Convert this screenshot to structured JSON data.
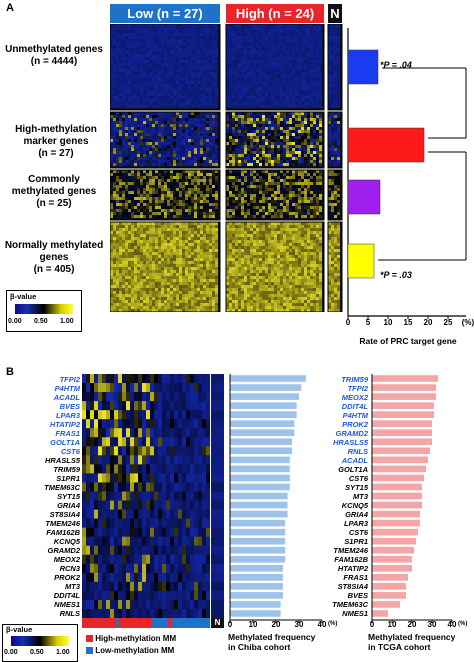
{
  "panelA": {
    "label": "A",
    "header_low": "Low (n = 27)",
    "header_high": "High (n = 24)",
    "header_n": "N",
    "groups": [
      {
        "name": "Unmethylated genes",
        "count": "(n = 4444)"
      },
      {
        "name": "High-methylation marker genes",
        "count": "(n = 27)"
      },
      {
        "name": "Commonly methylated genes",
        "count": "(n = 25)"
      },
      {
        "name": "Normally methylated genes",
        "count": "(n = 405)"
      }
    ],
    "legend_title": "β-value",
    "legend_ticks": [
      "0.00",
      "0.50",
      "1.00"
    ],
    "pvalue_top": "*P = .04",
    "pvalue_bottom": "*P = .03",
    "xlabel": "Rate of PRC target gene",
    "colors": {
      "low_header": "#1e73c8",
      "high_header": "#e8262a",
      "heat_blue": "#1a2db0",
      "heat_yellow": "#f0e640"
    }
  },
  "panelB": {
    "label": "B",
    "header_n": "N",
    "legend_title": "β-value",
    "legend_ticks": [
      "0.00",
      "0.50",
      "1.00"
    ],
    "legend_high": "High-methylation MM",
    "legend_low": "Low-methylation MM",
    "chiba_xlabel_1": "Methylated frequency",
    "chiba_xlabel_2": "in Chiba cohort",
    "tcga_xlabel_1": "Methylated frequency",
    "tcga_xlabel_2": "in TCGA cohort",
    "unit": "(%)"
  },
  "chart_data": [
    {
      "type": "bar",
      "orientation": "horizontal",
      "categories": [
        "Unmethylated genes",
        "High-methylation marker genes",
        "Commonly methylated genes",
        "Normally methylated genes"
      ],
      "values": [
        7.5,
        19,
        8,
        6.5
      ],
      "colors": [
        "#1a3cf0",
        "#ff1a1a",
        "#a020f0",
        "#ffff00"
      ],
      "xlabel": "Rate of PRC target gene",
      "xticks": [
        "0",
        "5",
        "10",
        "15",
        "20",
        "25",
        "(%)"
      ],
      "xlim": [
        0,
        25
      ]
    },
    {
      "type": "bar",
      "orientation": "horizontal",
      "categories": [
        "TFPI2",
        "P4HTM",
        "ACADL",
        "BVES",
        "LPAR3",
        "HTATIP2",
        "FRAS1",
        "GOLT1A",
        "CST6",
        "HRASLS5",
        "TRIM59",
        "S1PR1",
        "TMEM63C",
        "SYT15",
        "GRIA4",
        "ST8SIA4",
        "TMEM246",
        "FAM162B",
        "KCNQ5",
        "GRAMD2",
        "MEOX2",
        "RCN3",
        "PROK2",
        "MT3",
        "DDIT4L",
        "NMES1",
        "RNLS"
      ],
      "highlighted": [
        "TFPI2",
        "P4HTM",
        "ACADL",
        "BVES",
        "LPAR3",
        "HTATIP2",
        "FRAS1",
        "GOLT1A",
        "CST6"
      ],
      "values": [
        33,
        31,
        30,
        29,
        29,
        28,
        28,
        27,
        27,
        26,
        26,
        26,
        26,
        25,
        25,
        25,
        24,
        24,
        24,
        24,
        24,
        23,
        23,
        23,
        23,
        22,
        22
      ],
      "xticks": [
        "0",
        "10",
        "20",
        "30",
        "40"
      ],
      "xlim": [
        0,
        40
      ],
      "xlabel": "Methylated frequency in Chiba cohort",
      "color": "#9ec3ea"
    },
    {
      "type": "bar",
      "orientation": "horizontal",
      "categories": [
        "TRIM59",
        "TFPI2",
        "MEOX2",
        "DDIT4L",
        "P4HTM",
        "PROK2",
        "GRAMD2",
        "HRASLS5",
        "RNLS",
        "ACADL",
        "GOLT1A",
        "CST6",
        "SYT15",
        "MT3",
        "KCNQ5",
        "GRIA4",
        "LPAR3",
        "CST6",
        "S1PR1",
        "TMEM246",
        "FAM162B",
        "HTATIP2",
        "FRAS1",
        "ST8SIA4",
        "BVES",
        "TMEM63C",
        "NMES1"
      ],
      "highlighted": [
        "TRIM59",
        "TFPI2",
        "MEOX2",
        "DDIT4L",
        "P4HTM",
        "PROK2",
        "GRAMD2",
        "HRASLS5",
        "RNLS",
        "ACADL"
      ],
      "values": [
        33,
        32,
        32,
        31,
        31,
        30,
        30,
        30,
        29,
        28,
        27,
        26,
        25,
        25,
        25,
        24,
        24,
        23,
        22,
        21,
        20,
        20,
        18,
        17,
        17,
        14,
        8
      ],
      "xticks": [
        "0",
        "10",
        "20",
        "30",
        "40"
      ],
      "xlim": [
        0,
        40
      ],
      "xlabel": "Methylated frequency in TCGA cohort",
      "color": "#f4a6a6"
    }
  ]
}
